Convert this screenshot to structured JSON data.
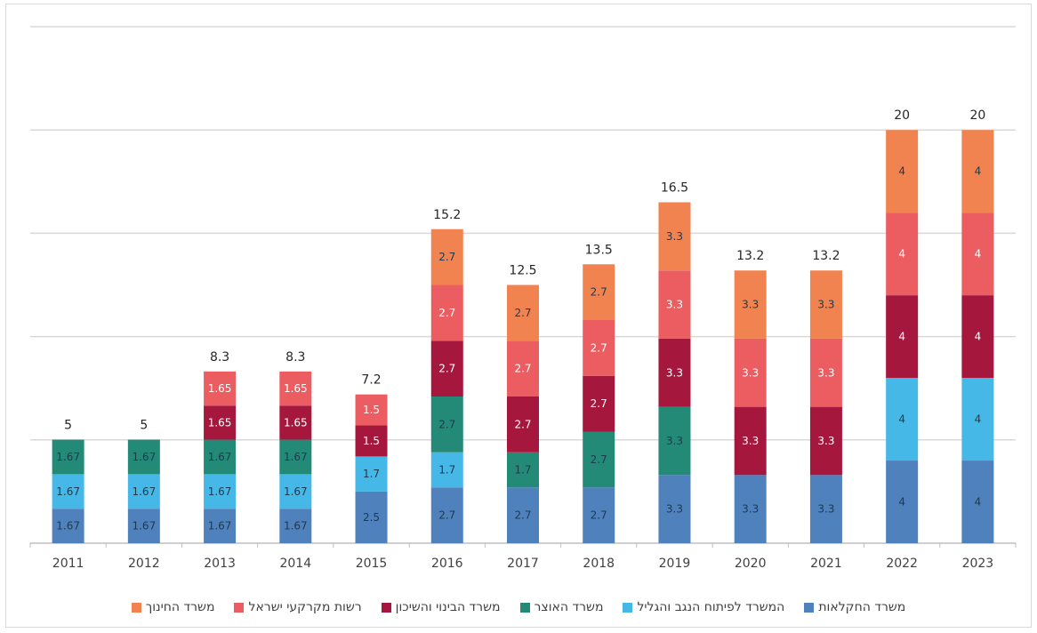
{
  "colors": {
    "agriculture": "#4f81bd",
    "negev_galilee": "#45b8e8",
    "treasury": "#238a77",
    "construction": "#a6173d",
    "land_authority": "#ec5d62",
    "education": "#f08350",
    "grid": "#d9d9d9",
    "axis": "#bfbfbf"
  },
  "legend": [
    {
      "key": "education",
      "label": "משרד החינוך"
    },
    {
      "key": "land_authority",
      "label": "רשות מקרקעי ישראל"
    },
    {
      "key": "construction",
      "label": "משרד הבינוי והשיכון"
    },
    {
      "key": "treasury",
      "label": "משרד האוצר"
    },
    {
      "key": "negev_galilee",
      "label": "המשרד לפיתוח הנגב והגליל"
    },
    {
      "key": "agriculture",
      "label": "משרד החקלאות"
    }
  ],
  "chart_data": {
    "type": "bar",
    "stacked": true,
    "categories": [
      "2011",
      "2012",
      "2013",
      "2014",
      "2015",
      "2016",
      "2017",
      "2018",
      "2019",
      "2020",
      "2021",
      "2022",
      "2023"
    ],
    "totals": [
      "5",
      "5",
      "8.3",
      "8.3",
      "7.2",
      "15.2",
      "12.5",
      "13.5",
      "16.5",
      "13.2",
      "13.2",
      "20",
      "20"
    ],
    "series": [
      {
        "key": "agriculture",
        "name": "משרד החקלאות",
        "values": [
          1.67,
          1.67,
          1.67,
          1.67,
          2.5,
          2.7,
          2.7,
          2.7,
          3.3,
          3.3,
          3.3,
          4,
          4
        ],
        "labels": [
          "1.67",
          "1.67",
          "1.67",
          "1.67",
          "2.5",
          "2.7",
          "2.7",
          "2.7",
          "3.3",
          "3.3",
          "3.3",
          "4",
          "4"
        ]
      },
      {
        "key": "negev_galilee",
        "name": "המשרד לפיתוח הנגב והגליל",
        "values": [
          1.67,
          1.67,
          1.67,
          1.67,
          1.7,
          1.7,
          0,
          0,
          0,
          0,
          0,
          4,
          4
        ],
        "labels": [
          "1.67",
          "1.67",
          "1.67",
          "1.67",
          "1.7",
          "1.7",
          "",
          "",
          "",
          "",
          "",
          "4",
          "4"
        ]
      },
      {
        "key": "treasury",
        "name": "משרד האוצר",
        "values": [
          1.67,
          1.67,
          1.67,
          1.67,
          0,
          2.7,
          1.7,
          2.7,
          3.3,
          0,
          0,
          0,
          0
        ],
        "labels": [
          "1.67",
          "1.67",
          "1.67",
          "1.67",
          "",
          "2.7",
          "1.7",
          "2.7",
          "3.3",
          "",
          "",
          "",
          ""
        ]
      },
      {
        "key": "construction",
        "name": "משרד הבינוי והשיכון",
        "values": [
          0,
          0,
          1.65,
          1.65,
          1.5,
          2.7,
          2.7,
          2.7,
          3.3,
          3.3,
          3.3,
          4,
          4
        ],
        "labels": [
          "",
          "",
          "1.65",
          "1.65",
          "1.5",
          "2.7",
          "2.7",
          "2.7",
          "3.3",
          "3.3",
          "3.3",
          "4",
          "4"
        ]
      },
      {
        "key": "land_authority",
        "name": "רשות מקרקעי ישראל",
        "values": [
          0,
          0,
          1.65,
          1.65,
          1.5,
          2.7,
          2.7,
          2.7,
          3.3,
          3.3,
          3.3,
          4,
          4
        ],
        "labels": [
          "",
          "",
          "1.65",
          "1.65",
          "1.5",
          "2.7",
          "2.7",
          "2.7",
          "3.3",
          "3.3",
          "3.3",
          "4",
          "4"
        ]
      },
      {
        "key": "education",
        "name": "משרד החינוך",
        "values": [
          0,
          0,
          0,
          0,
          0,
          2.7,
          2.7,
          2.7,
          3.3,
          3.3,
          3.3,
          4,
          4
        ],
        "labels": [
          "",
          "",
          "",
          "",
          "",
          "2.7",
          "2.7",
          "2.7",
          "3.3",
          "3.3",
          "3.3",
          "4",
          "4"
        ]
      }
    ],
    "ylim": [
      0,
      25
    ],
    "gridlines": [
      5,
      10,
      15,
      20,
      25
    ],
    "grid": true,
    "legend_position": "bottom",
    "title": "",
    "xlabel": "",
    "ylabel": ""
  }
}
